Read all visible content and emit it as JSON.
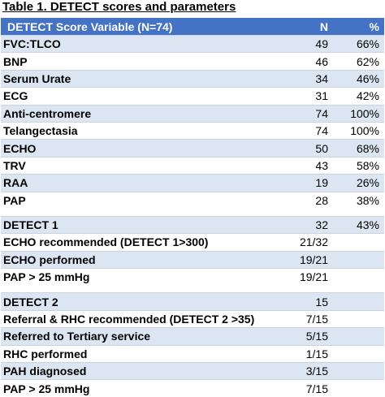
{
  "caption": "Table 1. DETECT scores and parameters",
  "header": {
    "variable": "DETECT Score Variable  (N=74)",
    "n": "N",
    "pct": "%"
  },
  "rows_a": [
    {
      "label": "FVC:TLCO",
      "n": "49",
      "pct": "66%"
    },
    {
      "label": "BNP",
      "n": "46",
      "pct": "62%"
    },
    {
      "label": "Serum Urate",
      "n": "34",
      "pct": "46%"
    },
    {
      "label": "ECG",
      "n": "31",
      "pct": "42%"
    },
    {
      "label": "Anti-centromere",
      "n": "74",
      "pct": "100%"
    },
    {
      "label": "Telangectasia",
      "n": "74",
      "pct": "100%"
    },
    {
      "label": "ECHO",
      "n": "50",
      "pct": "68%"
    },
    {
      "label": "TRV",
      "n": "43",
      "pct": "58%"
    },
    {
      "label": "RAA",
      "n": "19",
      "pct": "26%"
    },
    {
      "label": "PAP",
      "n": "28",
      "pct": "38%"
    }
  ],
  "rows_b": [
    {
      "label": "DETECT 1",
      "n": "32",
      "pct": "43%"
    },
    {
      "label": "ECHO recommended (DETECT 1>300)",
      "n": "21/32",
      "pct": ""
    },
    {
      "label": "ECHO performed",
      "n": "19/21",
      "pct": ""
    },
    {
      "label": "PAP > 25 mmHg",
      "n": "19/21",
      "pct": ""
    }
  ],
  "rows_c": [
    {
      "label": "DETECT 2",
      "n": "15",
      "pct": ""
    },
    {
      "label": "Referral & RHC recommended (DETECT 2 >35)",
      "n": "7/15",
      "pct": ""
    },
    {
      "label": "Referred to Tertiary service",
      "n": "5/15",
      "pct": ""
    },
    {
      "label": "RHC performed",
      "n": "1/15",
      "pct": ""
    },
    {
      "label": "PAH diagnosed",
      "n": "3/15",
      "pct": ""
    },
    {
      "label": "PAP > 25 mmHg",
      "n": "7/15",
      "pct": ""
    }
  ]
}
